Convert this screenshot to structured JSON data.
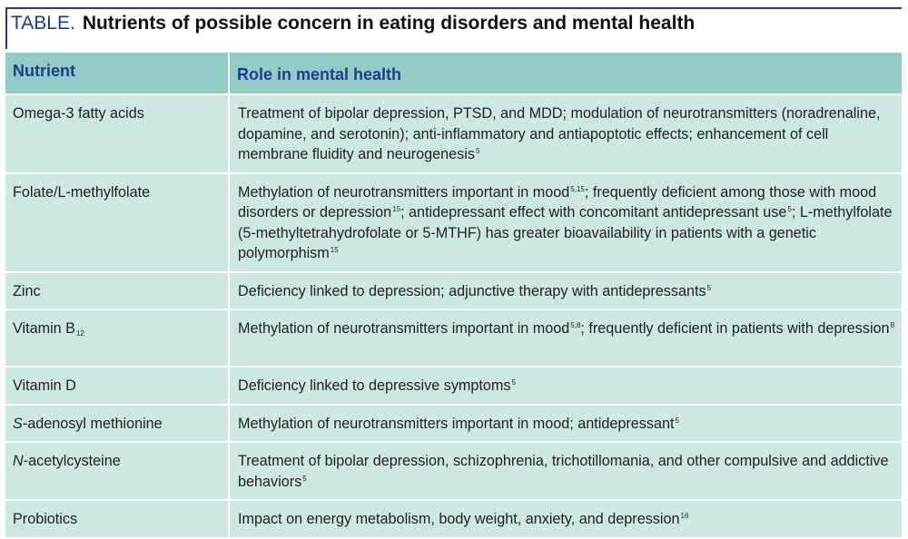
{
  "title": {
    "tag": "TABLE.",
    "text": "Nutrients of possible concern in eating disorders and mental health"
  },
  "columns": {
    "nutrient": "Nutrient",
    "role": "Role in mental health"
  },
  "rows": [
    {
      "nutrient": "Omega-3 fatty acids",
      "role_a": "Treatment of bipolar depression, PTSD, and MDD; modulation of neurotransmitters (noradrenaline, dopamine, and serotonin); anti-inflammatory and antiapoptotic effects; enhancement of cell membrane fluidity and neurogenesis",
      "ref_a": "5"
    },
    {
      "nutrient": "Folate/L-methylfolate",
      "role_a": "Methylation of neurotransmitters important in mood",
      "ref_a": "5,15",
      "role_b": "; frequently deficient among those with mood disorders or depression",
      "ref_b": "15",
      "role_c": "; antidepressant effect with concomitant antidepressant use",
      "ref_c": "5",
      "role_d": "; L-methylfolate (5-methyltetrahydrofolate or 5-MTHF) has greater bioavailability in patients with a genetic polymorphism",
      "ref_d": "15"
    },
    {
      "nutrient": "Zinc",
      "role_a": "Deficiency linked to depression; adjunctive therapy with antidepressants",
      "ref_a": "5"
    },
    {
      "nutrient": "Vitamin B",
      "nutrient_sub": "12",
      "role_a": "Methylation of neurotransmitters important in mood",
      "ref_a": "5,8",
      "role_b": "; frequently deficient in patients with depression",
      "ref_b": "8"
    },
    {
      "nutrient": "Vitamin D",
      "role_a": "Deficiency linked to depressive symptoms",
      "ref_a": "5"
    },
    {
      "nutrient_italic": "S",
      "nutrient": "-adenosyl methionine",
      "role_a": "Methylation of neurotransmitters important in mood; antidepressant",
      "ref_a": "5"
    },
    {
      "nutrient_italic": "N",
      "nutrient": "-acetylcysteine",
      "role_a": "Treatment of bipolar depression, schizophrenia, trichotillomania, and other compulsive and addictive behaviors",
      "ref_a": "5"
    },
    {
      "nutrient": "Probiotics",
      "role_a": "Impact on energy metabolism, body weight, anxiety, and depression",
      "ref_a": "16"
    }
  ],
  "colors": {
    "header_bg": "#91cdc6",
    "row_bg": "#cde7e3",
    "accent": "#1a3d8f"
  }
}
